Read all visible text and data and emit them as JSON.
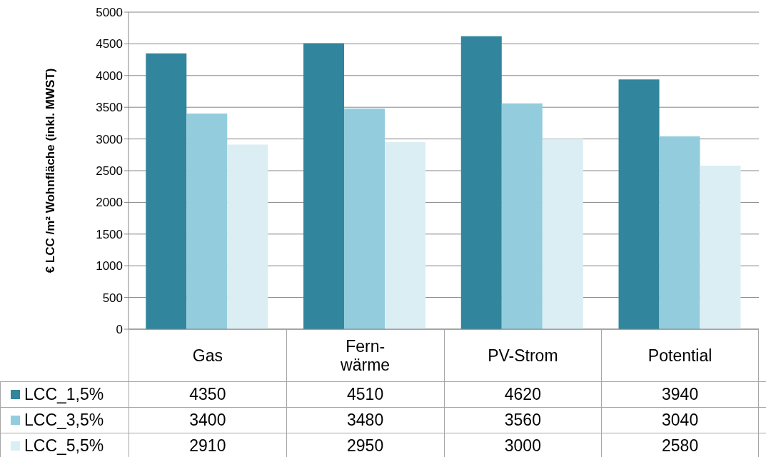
{
  "chart_data": {
    "type": "bar",
    "ylabel": "€ LCC /m² Wohnfläche (inkl. MWST)",
    "categories": [
      "Gas",
      "Fern-\nwärme",
      "PV-Strom",
      "Potential"
    ],
    "series": [
      {
        "name": "LCC_1,5%",
        "color": "#31859c",
        "values": [
          4350,
          4510,
          4620,
          3940
        ]
      },
      {
        "name": "LCC_3,5%",
        "color": "#93cddd",
        "values": [
          3400,
          3480,
          3560,
          3040
        ]
      },
      {
        "name": "LCC_5,5%",
        "color": "#dbeef4",
        "values": [
          2910,
          2950,
          3000,
          2580
        ]
      }
    ],
    "ylim": [
      0,
      5000
    ],
    "yticks": [
      0,
      500,
      1000,
      1500,
      2000,
      2500,
      3000,
      3500,
      4000,
      4500,
      5000
    ],
    "grid": "y",
    "legend": "bottom",
    "data_labels": true
  }
}
